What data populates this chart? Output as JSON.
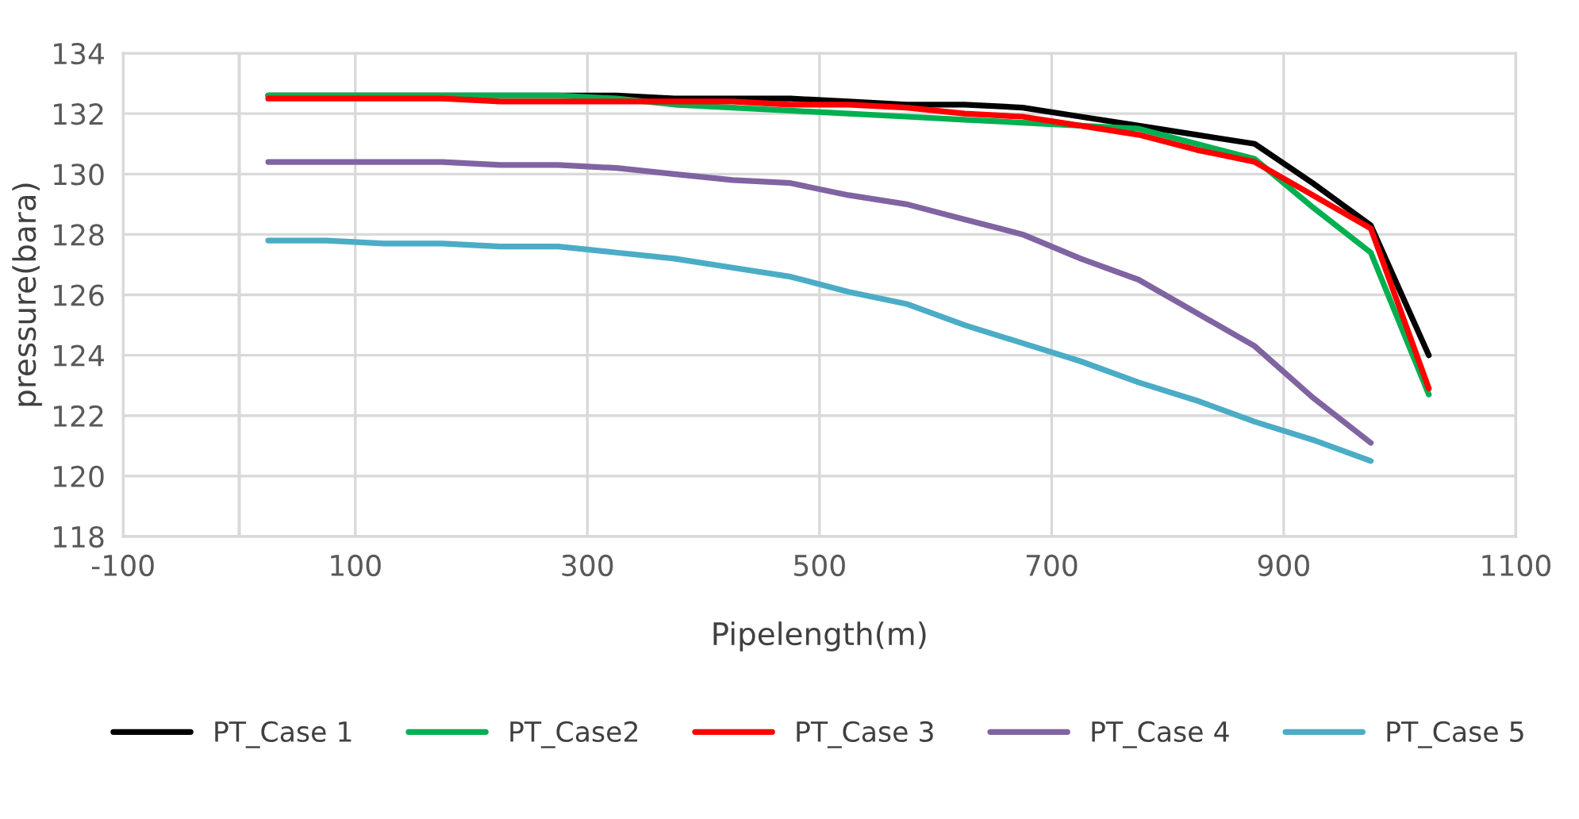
{
  "chart_data": {
    "type": "line",
    "xlabel": "Pipelength(m)",
    "ylabel": "pressure(bara)",
    "x": [
      25,
      75,
      125,
      175,
      225,
      275,
      325,
      375,
      425,
      475,
      525,
      575,
      625,
      675,
      725,
      775,
      825,
      875,
      925,
      975,
      1025
    ],
    "series": [
      {
        "name": "PT_Case 1",
        "color": "#000000",
        "values": [
          132.6,
          132.6,
          132.6,
          132.6,
          132.6,
          132.6,
          132.6,
          132.5,
          132.5,
          132.5,
          132.4,
          132.3,
          132.3,
          132.2,
          131.9,
          131.6,
          131.3,
          131.0,
          129.7,
          128.3,
          124.0
        ]
      },
      {
        "name": "PT_Case2",
        "color": "#00b050",
        "values": [
          132.6,
          132.6,
          132.6,
          132.6,
          132.6,
          132.6,
          132.5,
          132.3,
          132.2,
          132.1,
          132.0,
          131.9,
          131.8,
          131.7,
          131.6,
          131.5,
          131.0,
          130.5,
          128.9,
          127.4,
          122.7
        ]
      },
      {
        "name": "PT_Case 3",
        "color": "#ff0000",
        "values": [
          132.5,
          132.5,
          132.5,
          132.5,
          132.4,
          132.4,
          132.4,
          132.4,
          132.4,
          132.3,
          132.3,
          132.2,
          132.0,
          131.9,
          131.6,
          131.3,
          130.8,
          130.4,
          129.3,
          128.2,
          122.9
        ]
      },
      {
        "name": "PT_Case 4",
        "color": "#8064a2",
        "x": [
          25,
          75,
          125,
          175,
          225,
          275,
          325,
          375,
          425,
          475,
          525,
          575,
          625,
          675,
          725,
          775,
          825,
          875,
          925,
          975
        ],
        "values": [
          130.4,
          130.4,
          130.4,
          130.4,
          130.3,
          130.3,
          130.2,
          130.0,
          129.8,
          129.7,
          129.3,
          129.0,
          128.5,
          128.0,
          127.2,
          126.5,
          125.4,
          124.3,
          122.6,
          121.1
        ]
      },
      {
        "name": "PT_Case 5",
        "color": "#4bacc6",
        "x": [
          25,
          75,
          125,
          175,
          225,
          275,
          325,
          375,
          425,
          475,
          525,
          575,
          625,
          675,
          725,
          775,
          825,
          875,
          925,
          975
        ],
        "values": [
          127.8,
          127.8,
          127.7,
          127.7,
          127.6,
          127.6,
          127.4,
          127.2,
          126.9,
          126.6,
          126.1,
          125.7,
          125.0,
          124.4,
          123.8,
          123.1,
          122.5,
          121.8,
          121.2,
          120.5
        ]
      }
    ],
    "xlim": [
      -100,
      1100
    ],
    "xticks": [
      -100,
      100,
      300,
      500,
      700,
      900,
      1100
    ],
    "ylim": [
      118,
      134
    ],
    "yticks": [
      118,
      120,
      122,
      124,
      126,
      128,
      130,
      132,
      134
    ],
    "ref_lines": [
      {
        "axis": "x",
        "value": 0,
        "color": "#d9d9d9"
      }
    ],
    "grid": true,
    "legend": "bottom",
    "marker": "none",
    "line_style": "solid"
  }
}
